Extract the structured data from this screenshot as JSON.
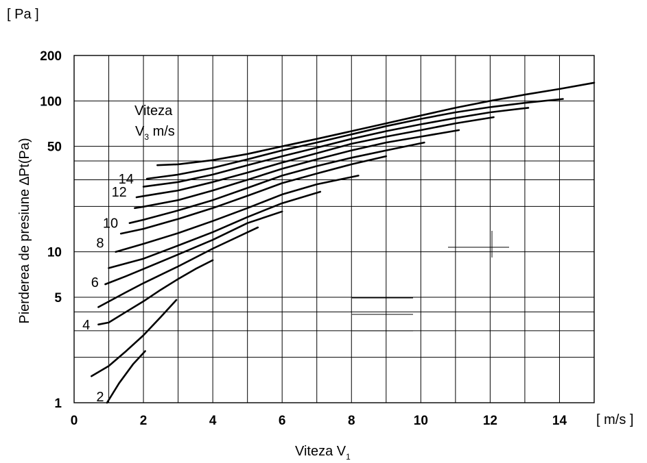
{
  "chart_data": {
    "type": "line",
    "y_scale": "log",
    "xlim": [
      0,
      15
    ],
    "ylim": [
      1,
      200
    ],
    "grid": true,
    "ylabel": "Pierderea de presiune ∆Pt(Pa)",
    "y_unit": "[ Pa ]",
    "xlabel": "Viteza V",
    "xlabel_sub": "1",
    "x_unit": "[ m/s ]",
    "x_ticks": [
      "0",
      "2",
      "4",
      "6",
      "8",
      "10",
      "12",
      "14"
    ],
    "y_ticks": [
      {
        "value": 1,
        "label": "1"
      },
      {
        "value": 5,
        "label": "5"
      },
      {
        "value": 10,
        "label": "10"
      },
      {
        "value": 50,
        "label": "50"
      },
      {
        "value": 100,
        "label": "100"
      },
      {
        "value": 200,
        "label": "200"
      }
    ],
    "annotation": {
      "line1": "Viteza",
      "line2": "V",
      "line2_sub": "3",
      "line2_rest": " m/s"
    },
    "curve_labels": [
      {
        "text": "2",
        "x": 0.75,
        "y": 1.1
      },
      {
        "text": "4",
        "x": 0.35,
        "y": 3.3
      },
      {
        "text": "6",
        "x": 0.6,
        "y": 6.3
      },
      {
        "text": "8",
        "x": 0.75,
        "y": 11.5
      },
      {
        "text": "10",
        "x": 1.05,
        "y": 15.5
      },
      {
        "text": "12",
        "x": 1.3,
        "y": 25
      },
      {
        "text": "14",
        "x": 1.5,
        "y": 30.5
      }
    ],
    "series": [
      {
        "values": [
          [
            0.95,
            1.0
          ],
          [
            1.3,
            1.35
          ],
          [
            1.7,
            1.8
          ],
          [
            2.05,
            2.2
          ]
        ]
      },
      {
        "values": [
          [
            0.5,
            1.5
          ],
          [
            1.0,
            1.75
          ],
          [
            1.5,
            2.2
          ],
          [
            2.0,
            2.8
          ],
          [
            2.5,
            3.7
          ],
          [
            2.95,
            4.8
          ]
        ]
      },
      {
        "values": [
          [
            0.7,
            3.3
          ],
          [
            1.0,
            3.4
          ],
          [
            1.5,
            4.0
          ],
          [
            2.0,
            4.7
          ],
          [
            2.5,
            5.6
          ],
          [
            3.0,
            6.6
          ],
          [
            3.5,
            7.7
          ],
          [
            4.0,
            8.8
          ]
        ]
      },
      {
        "values": [
          [
            0.7,
            4.3
          ],
          [
            1.5,
            5.4
          ],
          [
            2.0,
            6.2
          ],
          [
            3.0,
            8.0
          ],
          [
            4.0,
            10.5
          ],
          [
            5.3,
            14.5
          ]
        ]
      },
      {
        "values": [
          [
            0.9,
            6.1
          ],
          [
            1.5,
            6.9
          ],
          [
            2.0,
            7.7
          ],
          [
            3.0,
            9.6
          ],
          [
            4.0,
            12.0
          ],
          [
            5.0,
            15.5
          ],
          [
            6.0,
            18.5
          ]
        ]
      },
      {
        "values": [
          [
            1.0,
            7.8
          ],
          [
            2.0,
            9.0
          ],
          [
            3.0,
            11.0
          ],
          [
            4.0,
            13.5
          ],
          [
            5.0,
            17.0
          ],
          [
            6.0,
            21.0
          ],
          [
            7.1,
            25.0
          ]
        ]
      },
      {
        "values": [
          [
            1.2,
            10.0
          ],
          [
            2.0,
            11.3
          ],
          [
            3.0,
            13.3
          ],
          [
            4.0,
            16.0
          ],
          [
            5.0,
            19.5
          ],
          [
            6.0,
            24.0
          ],
          [
            7.0,
            28.0
          ],
          [
            8.2,
            32.0
          ]
        ]
      },
      {
        "values": [
          [
            1.35,
            13.2
          ],
          [
            2.0,
            14.2
          ],
          [
            3.0,
            16.5
          ],
          [
            4.0,
            19.5
          ],
          [
            5.0,
            23.5
          ],
          [
            6.0,
            28.5
          ],
          [
            7.0,
            33.0
          ],
          [
            8.0,
            38.0
          ],
          [
            9.0,
            43.0
          ]
        ]
      },
      {
        "values": [
          [
            1.6,
            15.5
          ],
          [
            2.0,
            16.3
          ],
          [
            3.0,
            18.8
          ],
          [
            4.0,
            22.0
          ],
          [
            5.0,
            26.5
          ],
          [
            6.0,
            32.0
          ],
          [
            7.0,
            37.0
          ],
          [
            8.0,
            42.0
          ],
          [
            9.0,
            47.0
          ],
          [
            10.1,
            53.0
          ]
        ]
      },
      {
        "values": [
          [
            1.75,
            19.5
          ],
          [
            2.0,
            19.9
          ],
          [
            3.0,
            22.0
          ],
          [
            4.0,
            25.5
          ],
          [
            5.0,
            30.0
          ],
          [
            6.0,
            35.5
          ],
          [
            7.0,
            41.0
          ],
          [
            8.0,
            47.0
          ],
          [
            9.0,
            53.0
          ],
          [
            10.0,
            58.0
          ],
          [
            11.1,
            64.0
          ]
        ]
      },
      {
        "values": [
          [
            1.8,
            23.0
          ],
          [
            2.0,
            23.4
          ],
          [
            3.0,
            25.5
          ],
          [
            4.0,
            29.0
          ],
          [
            5.0,
            33.5
          ],
          [
            6.0,
            39.0
          ],
          [
            7.0,
            45.0
          ],
          [
            8.0,
            52.0
          ],
          [
            9.0,
            58.0
          ],
          [
            10.0,
            64.0
          ],
          [
            11.0,
            71.0
          ],
          [
            12.1,
            78.0
          ]
        ]
      },
      {
        "values": [
          [
            2.0,
            27.0
          ],
          [
            3.0,
            29.0
          ],
          [
            4.0,
            32.5
          ],
          [
            5.0,
            37.5
          ],
          [
            6.0,
            43.0
          ],
          [
            7.0,
            49.0
          ],
          [
            8.0,
            56.0
          ],
          [
            9.0,
            63.0
          ],
          [
            10.0,
            70.0
          ],
          [
            11.0,
            77.0
          ],
          [
            12.0,
            84.0
          ],
          [
            13.1,
            90.0
          ]
        ]
      },
      {
        "values": [
          [
            2.1,
            30.5
          ],
          [
            3.0,
            32.5
          ],
          [
            4.0,
            36.0
          ],
          [
            5.0,
            41.0
          ],
          [
            6.0,
            47.0
          ],
          [
            7.0,
            53.0
          ],
          [
            8.0,
            60.0
          ],
          [
            9.0,
            68.0
          ],
          [
            10.0,
            76.0
          ],
          [
            11.0,
            84.0
          ],
          [
            12.0,
            91.0
          ],
          [
            13.0,
            97.0
          ],
          [
            14.1,
            103.0
          ]
        ]
      },
      {
        "values": [
          [
            2.4,
            37.5
          ],
          [
            3.0,
            38.0
          ],
          [
            4.0,
            40.5
          ],
          [
            5.0,
            44.5
          ],
          [
            6.0,
            50.0
          ],
          [
            7.0,
            56.0
          ],
          [
            8.0,
            63.0
          ],
          [
            9.0,
            71.0
          ],
          [
            10.0,
            80.0
          ],
          [
            11.0,
            90.0
          ],
          [
            12.0,
            100.0
          ],
          [
            13.0,
            110.0
          ],
          [
            14.0,
            120.0
          ],
          [
            15.0,
            132.0
          ]
        ]
      }
    ]
  }
}
